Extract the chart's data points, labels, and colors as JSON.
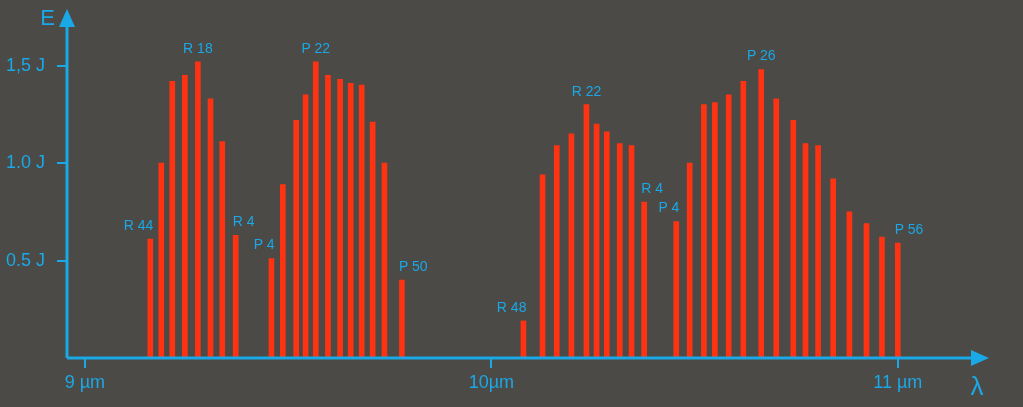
{
  "chart_data": {
    "type": "bar",
    "xlabel": "λ",
    "ylabel": "E",
    "x": [
      9.161,
      9.188,
      9.215,
      9.246,
      9.278,
      9.309,
      9.338,
      9.371,
      9.459,
      9.487,
      9.52,
      9.543,
      9.568,
      9.598,
      9.628,
      9.654,
      9.681,
      9.708,
      9.737,
      9.78,
      10.079,
      10.126,
      10.161,
      10.197,
      10.234,
      10.259,
      10.284,
      10.316,
      10.345,
      10.376,
      10.455,
      10.488,
      10.523,
      10.55,
      10.584,
      10.62,
      10.664,
      10.701,
      10.743,
      10.773,
      10.804,
      10.841,
      10.881,
      10.923,
      10.961,
      11.0
    ],
    "values": [
      0.61,
      1.0,
      1.42,
      1.45,
      1.52,
      1.33,
      1.11,
      0.63,
      0.51,
      0.89,
      1.22,
      1.35,
      1.52,
      1.45,
      1.43,
      1.41,
      1.4,
      1.21,
      1.0,
      0.4,
      0.19,
      0.94,
      1.09,
      1.15,
      1.3,
      1.2,
      1.16,
      1.1,
      1.09,
      0.8,
      0.7,
      1.0,
      1.3,
      1.31,
      1.35,
      1.42,
      1.48,
      1.33,
      1.22,
      1.1,
      1.09,
      0.92,
      0.75,
      0.69,
      0.62,
      0.59
    ],
    "color": "#ff3311",
    "xlim": [
      8.956,
      11.19
    ],
    "xticks": [
      {
        "value": 9,
        "label": "9 µm"
      },
      {
        "value": 10,
        "label": "10µm"
      },
      {
        "value": 11,
        "label": "11 µm"
      }
    ],
    "ylim": [
      0,
      1.72
    ],
    "yticks": [
      {
        "value": 0.5,
        "label": "0.5 J"
      },
      {
        "value": 1.0,
        "label": "1.0 J"
      },
      {
        "value": 1.5,
        "label": "1,5 J"
      }
    ],
    "grid": false,
    "legend": false,
    "annotations": [
      {
        "text": "R 44",
        "x": 9.161,
        "y": 0.61
      },
      {
        "text": "R 18",
        "x": 9.278,
        "y": 1.52
      },
      {
        "text": "R 4",
        "x": 9.371,
        "y": 0.63
      },
      {
        "text": "P 4",
        "x": 9.459,
        "y": 0.51
      },
      {
        "text": "P 22",
        "x": 9.568,
        "y": 1.52
      },
      {
        "text": "P 50",
        "x": 9.78,
        "y": 0.4
      },
      {
        "text": "R 48",
        "x": 10.079,
        "y": 0.19
      },
      {
        "text": "R 22",
        "x": 10.234,
        "y": 1.3
      },
      {
        "text": "R 4",
        "x": 10.376,
        "y": 0.8
      },
      {
        "text": "P 4",
        "x": 10.455,
        "y": 0.7
      },
      {
        "text": "P 26",
        "x": 10.664,
        "y": 1.48
      },
      {
        "text": "P 56",
        "x": 11.0,
        "y": 0.59
      }
    ]
  }
}
